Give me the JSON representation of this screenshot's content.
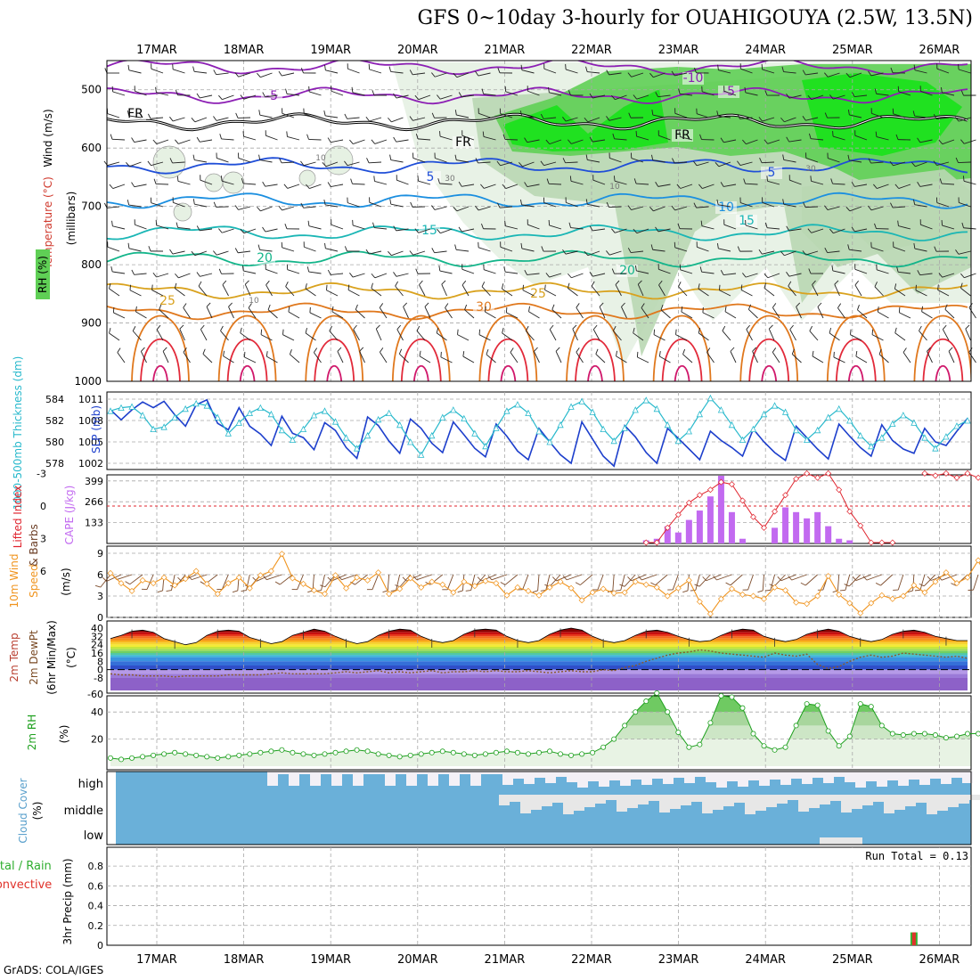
{
  "title": "GFS 0~10day 3-hourly for OUAHIGOUYA (2.5W, 13.5N)",
  "credit": "GrADS: COLA/IGES",
  "colors": {
    "rh_light": "#e6f1e3",
    "rh_mid": "#b9d7b2",
    "rh_green": "#5fcf55",
    "rh_bright": "#18e21a",
    "temp_purple": "#8c1fb4",
    "temp_blue": "#1f4ed8",
    "temp_lblue": "#1b8fe0",
    "temp_cyan": "#1ab6b5",
    "temp_teal": "#13b58a",
    "temp_yellow": "#d9a21e",
    "temp_orange": "#e0781d",
    "temp_red": "#e22a3a",
    "slp_line": "#1d3fcc",
    "thick_line": "#28b9cc",
    "li_line": "#e0242e",
    "cape_bar": "#c26af0",
    "wind_line": "#f0941e",
    "barb": "#7b4a2a",
    "rh2m_line": "#1ea01e",
    "cloud": "#6ab0d9",
    "cloud_gap": "#f3f0f6",
    "grid": "#a8a8a8"
  },
  "chart_data": {
    "type": "meteogram",
    "dates": [
      "17MAR",
      "18MAR",
      "19MAR",
      "20MAR",
      "21MAR",
      "22MAR",
      "23MAR",
      "24MAR",
      "25MAR",
      "26MAR"
    ],
    "panels": [
      {
        "name": "upper-air",
        "type": "heatmap",
        "ylabels": [
          "Wind (m/s)",
          "Temperature (°C)",
          "RH (%)"
        ],
        "ylabel_sub": "(millibars)",
        "yticks": [
          500,
          600,
          700,
          800,
          900,
          1000
        ],
        "ylim": [
          450,
          1000
        ],
        "isotherm_labels": [
          "-10",
          "-5",
          "FR",
          "5",
          "10",
          "15",
          "20",
          "25",
          "30"
        ],
        "rh_labels": [
          "10",
          "30"
        ],
        "isotherms": [
          {
            "label": "-10",
            "p": 460
          },
          {
            "label": "-5",
            "p": 510
          },
          {
            "label": "FR",
            "p": 555
          },
          {
            "label": "5",
            "p": 630
          },
          {
            "label": "10",
            "p": 690
          },
          {
            "label": "15",
            "p": 745
          },
          {
            "label": "20",
            "p": 790
          },
          {
            "label": "25",
            "p": 845
          },
          {
            "label": "30",
            "p": 880
          }
        ]
      },
      {
        "name": "slp-thickness",
        "type": "line",
        "ylabel_left": "1000-500mb Thickness (dm)",
        "ylabel_right": "SLP (mb)",
        "yticks_left": [
          "584",
          "582",
          "580",
          "578"
        ],
        "yticks_right": [
          "1011",
          "1008",
          "1005",
          "1002"
        ],
        "series": [
          {
            "name": "SLP (mb)",
            "values": [
              1009.5,
              1008.1,
              1009.5,
              1010.6,
              1009.8,
              1010.7,
              1008.8,
              1007.2,
              1010.2,
              1010.9,
              1007.6,
              1006.7,
              1009.8,
              1007.2,
              1006.1,
              1004.5,
              1008.6,
              1006.2,
              1005.6,
              1003.9,
              1007.7,
              1006.6,
              1004.2,
              1002.7,
              1008.5,
              1007.3,
              1005.1,
              1003.4,
              1008.2,
              1006.9,
              1004.8,
              1003.5,
              1007.8,
              1006.0,
              1004.1,
              1002.9,
              1007.5,
              1005.8,
              1003.7,
              1002.5,
              1006.9,
              1005.0,
              1003.2,
              1002.0,
              1007.8,
              1005.4,
              1003.0,
              1001.6,
              1007.3,
              1005.7,
              1003.5,
              1002.0,
              1006.9,
              1005.5,
              1004.0,
              1002.5,
              1006.5,
              1005.2,
              1004.2,
              1003.0,
              1006.8,
              1005.0,
              1003.5,
              1002.4,
              1007.2,
              1005.6,
              1004.0,
              1002.6,
              1007.5,
              1005.8,
              1004.2,
              1003.0,
              1007.4,
              1005.2,
              1004.0,
              1003.4,
              1006.9,
              1005.0,
              1004.5,
              1006.5,
              1008.3
            ]
          },
          {
            "name": "Thickness (dm)",
            "values": [
              582.9,
              583.2,
              583.3,
              582.5,
              581.2,
              581.4,
              582.3,
              583.1,
              583.6,
              583.4,
              582.3,
              580.8,
              581.8,
              582.7,
              583.2,
              582.6,
              581.1,
              580.2,
              581.2,
              582.5,
              582.9,
              581.9,
              580.4,
              579.4,
              580.6,
              582.1,
              582.7,
              581.6,
              580.0,
              578.8,
              580.6,
              582.3,
              583.0,
              582.2,
              580.8,
              579.6,
              581.3,
              582.9,
              583.5,
              582.7,
              581.0,
              580.0,
              581.6,
              583.3,
              583.8,
              582.8,
              581.2,
              580.1,
              581.3,
              583.0,
              583.9,
              583.1,
              581.6,
              580.1,
              581.0,
              582.6,
              584.1,
              583.0,
              581.6,
              580.2,
              581.2,
              582.6,
              583.4,
              582.8,
              581.1,
              580.2,
              581.1,
              582.3,
              583.1,
              582.0,
              580.6,
              579.6,
              580.4,
              581.7,
              582.5,
              581.8,
              580.4,
              579.4,
              580.5,
              581.5,
              582.0
            ]
          }
        ]
      },
      {
        "name": "cape-li",
        "type": "bar",
        "ylabel_left": "Lifted Index",
        "ylabel_right": "CAPE (J/kg)",
        "yticks_left": [
          "-3",
          "0",
          "3",
          "6"
        ],
        "yticks_right": [
          "399",
          "266",
          "133"
        ],
        "cape": [
          0,
          0,
          0,
          0,
          0,
          0,
          0,
          0,
          0,
          0,
          0,
          0,
          0,
          0,
          0,
          0,
          0,
          0,
          0,
          0,
          0,
          0,
          0,
          0,
          0,
          0,
          0,
          0,
          0,
          0,
          0,
          0,
          0,
          0,
          0,
          0,
          0,
          0,
          0,
          0,
          0,
          0,
          0,
          0,
          0,
          0,
          0,
          0,
          0,
          0,
          20,
          30,
          110,
          70,
          150,
          210,
          300,
          520,
          200,
          30,
          0,
          0,
          100,
          230,
          200,
          160,
          200,
          110,
          30,
          20,
          0,
          0,
          0,
          0,
          0,
          0,
          0,
          0,
          0,
          0,
          0,
          0,
          0,
          0,
          0,
          0,
          0,
          0,
          0
        ],
        "li": [
          null,
          null,
          null,
          null,
          null,
          null,
          null,
          null,
          null,
          null,
          null,
          null,
          null,
          null,
          null,
          null,
          null,
          null,
          null,
          null,
          null,
          null,
          null,
          null,
          null,
          null,
          null,
          null,
          null,
          null,
          null,
          null,
          null,
          null,
          null,
          null,
          null,
          null,
          null,
          null,
          null,
          null,
          null,
          null,
          null,
          null,
          null,
          null,
          null,
          null,
          5.5,
          3.5,
          2.0,
          0.8,
          -0.3,
          -1.0,
          -1.5,
          -2.2,
          -2.0,
          -0.5,
          1.0,
          2.0,
          0.5,
          -1.0,
          -2.5,
          -3.0,
          -2.6,
          -3.0,
          -1.5,
          0.5,
          1.8,
          3.5,
          5.5,
          6.0,
          null,
          null,
          -3.0,
          -2.8,
          -3.0,
          -2.6,
          -3.0,
          -2.6,
          -2.0,
          -1.5,
          0.0,
          1.5,
          3.5,
          4.5,
          4.0,
          2.2,
          1.5,
          2.5,
          3.5,
          4.5,
          5.2,
          5.8
        ]
      },
      {
        "name": "10m-wind",
        "type": "line",
        "ylabel": "10m Wind Speed & Barbs",
        "yunit": "(m/s)",
        "yticks": [
          "9",
          "6",
          "3",
          "0"
        ],
        "values": [
          6.2,
          4.8,
          3.7,
          5.2,
          4.8,
          5.6,
          4.5,
          5.4,
          6.5,
          4.7,
          3.3,
          4.8,
          5.6,
          4.1,
          5.9,
          6.5,
          8.9,
          5.5,
          4.7,
          3.8,
          3.3,
          5.9,
          4.1,
          5.6,
          5.2,
          6.3,
          3.3,
          4.0,
          5.5,
          4.2,
          5.0,
          4.6,
          3.5,
          5.0,
          4.4,
          5.1,
          4.8,
          3.1,
          4.2,
          3.7,
          3.1,
          4.2,
          5.0,
          4.1,
          2.4,
          3.5,
          4.0,
          3.4,
          3.5,
          5.0,
          4.6,
          4.2,
          3.0,
          4.1,
          5.2,
          2.2,
          0.5,
          2.6,
          4.0,
          3.2,
          3.0,
          2.6,
          4.2,
          3.8,
          2.1,
          1.9,
          3.0,
          5.8,
          3.2,
          2.0,
          0.6,
          2.0,
          3.1,
          2.6,
          3.0,
          4.5,
          3.5,
          5.0,
          6.3,
          4.8,
          5.6,
          8.0,
          4.8,
          3.5,
          3.0,
          2.3,
          3.2,
          3.1,
          2.3,
          1.6,
          2.5,
          2.0
        ]
      },
      {
        "name": "2m-temp",
        "type": "area",
        "ylabel": "2m Temp / 2m DewPt (6hr Min/Max)",
        "yunit": "(°C)",
        "yticks": [
          "40",
          "32",
          "24",
          "16",
          "8",
          "0",
          "-8",
          "-60"
        ],
        "temp": [
          30,
          33,
          37,
          38,
          36,
          30,
          27,
          24,
          26,
          33,
          37,
          38,
          37,
          31,
          28,
          25,
          27,
          33,
          36,
          39,
          37,
          32,
          28,
          25,
          27,
          33,
          37,
          39,
          38,
          32,
          28,
          26,
          28,
          34,
          38,
          39,
          38,
          32,
          28,
          26,
          28,
          34,
          38,
          40,
          38,
          32,
          28,
          26,
          28,
          33,
          37,
          38,
          36,
          32,
          29,
          27,
          28,
          33,
          37,
          39,
          38,
          32,
          29,
          27,
          29,
          34,
          37,
          39,
          37,
          32,
          29,
          27,
          29,
          34,
          37,
          38,
          36,
          32,
          30,
          28,
          28
        ],
        "dewpt": [
          -4,
          -5,
          -5,
          -6,
          -6,
          -6,
          -7,
          -6,
          -6,
          -6,
          -6,
          -5,
          -5,
          -5,
          -5,
          -4,
          -3,
          -4,
          -4,
          -4,
          -4,
          -3,
          -2,
          -3,
          -2,
          -1,
          -3,
          -2,
          -3,
          -2,
          -1,
          -3,
          -2,
          -2,
          -1,
          -2,
          -1,
          -2,
          -2,
          -1,
          -2,
          -3,
          -2,
          -1,
          -2,
          -2,
          0,
          -1,
          2,
          4,
          8,
          11,
          14,
          16,
          17,
          19,
          18,
          16,
          15,
          14,
          13,
          12,
          16,
          14,
          13,
          15,
          5,
          1,
          3,
          8,
          12,
          14,
          12,
          13,
          16,
          15,
          14,
          13,
          12,
          13,
          11
        ]
      },
      {
        "name": "2m-rh",
        "type": "line",
        "ylabel": "2m RH",
        "yunit": "(%)",
        "yticks": [
          "40",
          "20"
        ],
        "values": [
          6,
          5,
          6,
          7,
          8,
          9,
          10,
          9,
          8,
          7,
          6,
          7,
          8,
          9,
          10,
          11,
          12,
          10,
          9,
          8,
          9,
          10,
          11,
          12,
          11,
          9,
          8,
          7,
          8,
          9,
          10,
          11,
          10,
          9,
          8,
          9,
          10,
          11,
          10,
          9,
          10,
          11,
          9,
          8,
          9,
          10,
          14,
          20,
          30,
          40,
          48,
          54,
          40,
          25,
          14,
          16,
          32,
          52,
          51,
          43,
          24,
          15,
          12,
          14,
          30,
          46,
          45,
          26,
          15,
          22,
          46,
          44,
          30,
          24,
          23,
          24,
          24,
          23,
          21,
          22,
          24,
          24,
          25,
          27,
          28,
          27
        ]
      },
      {
        "name": "cloud-cover",
        "type": "area",
        "ylabel": "Cloud Cover",
        "yunit": "(%)",
        "levels": [
          "high",
          "middle",
          "low"
        ]
      },
      {
        "name": "precip",
        "type": "bar",
        "ylabel": "3hr Precip (mm)",
        "ylabel_extra": [
          "Total / Rain",
          "Convective"
        ],
        "yticks": [
          "0.8",
          "0.6",
          "0.4",
          "0.2",
          "0"
        ],
        "ylim": [
          0,
          0.95
        ],
        "run_total_label": "Run Total = 0.13",
        "values": [
          0,
          0,
          0,
          0,
          0,
          0,
          0,
          0,
          0,
          0,
          0,
          0,
          0,
          0,
          0,
          0,
          0,
          0,
          0,
          0,
          0,
          0,
          0,
          0,
          0,
          0,
          0,
          0,
          0,
          0,
          0,
          0,
          0,
          0,
          0,
          0,
          0,
          0,
          0,
          0,
          0,
          0,
          0,
          0,
          0,
          0,
          0,
          0,
          0,
          0,
          0,
          0,
          0,
          0,
          0,
          0,
          0,
          0,
          0,
          0,
          0,
          0,
          0,
          0,
          0,
          0,
          0,
          0,
          0,
          0,
          0,
          0,
          0,
          0,
          0,
          0.13,
          0,
          0,
          0,
          0,
          0,
          0
        ]
      }
    ]
  }
}
